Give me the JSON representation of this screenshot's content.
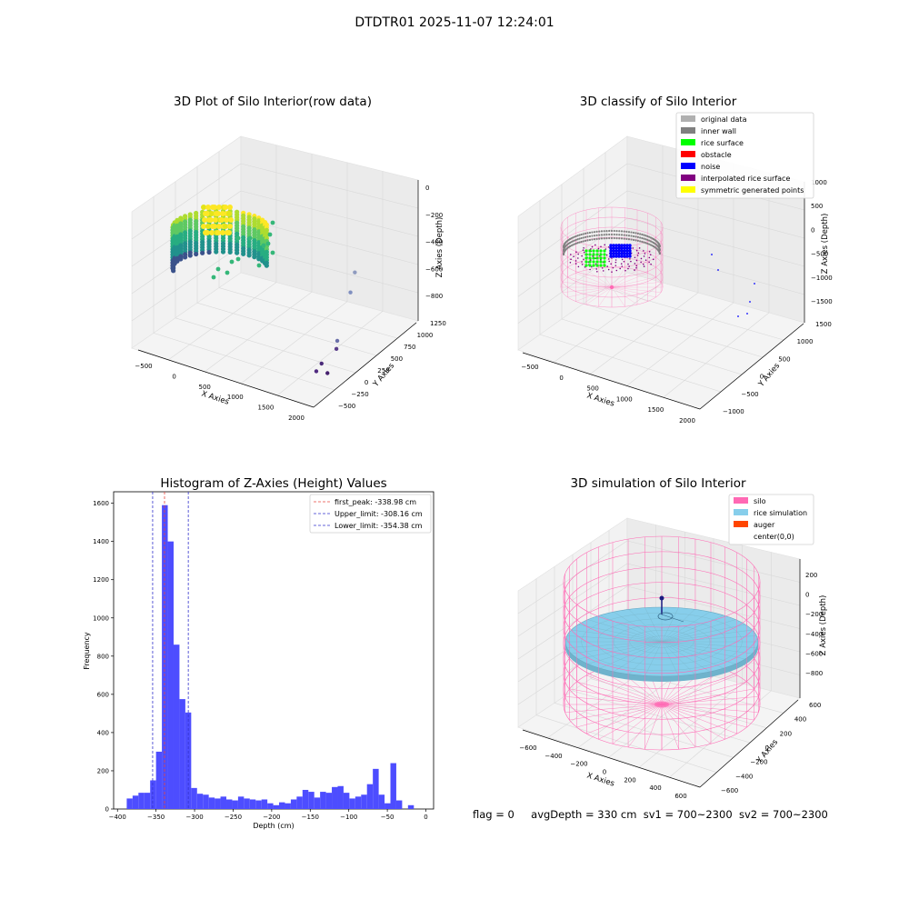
{
  "figure": {
    "title": "DTDTR01 2025-11-07 12:24:01",
    "status": {
      "flag": "flag = 0",
      "avg_depth": "avgDepth = 330 cm",
      "sv1": "sv1 = 700~2300",
      "sv2": "sv2 = 700~2300"
    }
  },
  "colors": {
    "bar": "#4d4dff",
    "peak": "#e8453c",
    "limit": "#3333cc",
    "silo": "#ff69b4",
    "rice": "#87ceeb",
    "auger": "#ff4500",
    "inner_wall": "#808080",
    "rice_surface": "#00ff00",
    "obstacle": "#ff0000",
    "noise": "#0000ff",
    "interpolated": "#800080",
    "symmetric": "#ffff00",
    "original": "#b0b0b0"
  },
  "chart_data": [
    {
      "type": "scatter",
      "projection": "3d",
      "title": "3D Plot of Silo Interior(row data)",
      "xlabel": "X Axies",
      "ylabel": "Y Axies",
      "zlabel": "Z Axies (Depth)",
      "x_ticks": [
        "−500",
        "0",
        "500",
        "1000",
        "1500",
        "2000"
      ],
      "y_ticks": [
        "−500",
        "−250",
        "0",
        "250",
        "500",
        "750",
        "1000",
        "1250"
      ],
      "z_ticks": [
        "−800",
        "−600",
        "−400",
        "−200",
        "0"
      ],
      "xlim": [
        -600,
        2000
      ],
      "ylim": [
        -600,
        1300
      ],
      "zlim": [
        -900,
        0
      ],
      "colormap": "viridis",
      "outlier_points": [
        {
          "x": 1250,
          "y": 1000,
          "z": -550
        },
        {
          "x": 1270,
          "y": 900,
          "z": -650
        },
        {
          "x": 1500,
          "y": 400,
          "z": -800
        },
        {
          "x": 1700,
          "y": 150,
          "z": -760
        },
        {
          "x": 1650,
          "y": -50,
          "z": -810
        },
        {
          "x": 1780,
          "y": -100,
          "z": -840
        },
        {
          "x": 1640,
          "y": -130,
          "z": -840
        }
      ]
    },
    {
      "type": "scatter",
      "projection": "3d",
      "title": "3D classify of Silo Interior",
      "xlabel": "X Axies",
      "ylabel": "Y Axies",
      "zlabel": "Z Axies (Depth)",
      "x_ticks": [
        "−500",
        "0",
        "500",
        "1000",
        "1500",
        "2000"
      ],
      "y_ticks": [
        "−1000",
        "−500",
        "0",
        "500",
        "1000",
        "1500"
      ],
      "z_ticks": [
        "−1500",
        "−1000",
        "−500",
        "0",
        "500",
        "1000"
      ],
      "legend_position": "top-right",
      "legend": [
        {
          "label": "original data",
          "color": "#b0b0b0"
        },
        {
          "label": "inner wall",
          "color": "#808080"
        },
        {
          "label": "rice surface",
          "color": "#00ff00"
        },
        {
          "label": "obstacle",
          "color": "#ff0000"
        },
        {
          "label": "noise",
          "color": "#0000ff"
        },
        {
          "label": "interpolated rice surface",
          "color": "#800080"
        },
        {
          "label": "symmetric generated points",
          "color": "#ffff00"
        }
      ]
    },
    {
      "type": "bar",
      "title": "Histogram of Z-Axies (Height) Values",
      "xlabel": "Depth (cm)",
      "ylabel": "Frequency",
      "xlim": [
        -405,
        10
      ],
      "ylim": [
        0,
        1660
      ],
      "x_ticks": [
        -400,
        -350,
        -300,
        -250,
        -200,
        -150,
        -100,
        -50,
        0
      ],
      "y_ticks": [
        0,
        200,
        400,
        600,
        800,
        1000,
        1200,
        1400,
        1600
      ],
      "bin_width": 7.6,
      "bin_start": -388,
      "values": [
        55,
        70,
        85,
        85,
        150,
        300,
        1590,
        1400,
        860,
        575,
        505,
        110,
        80,
        75,
        60,
        55,
        65,
        50,
        45,
        65,
        55,
        50,
        45,
        50,
        30,
        20,
        35,
        30,
        50,
        65,
        100,
        90,
        60,
        90,
        85,
        115,
        120,
        85,
        55,
        65,
        75,
        130,
        210,
        75,
        30,
        240,
        45,
        0,
        20
      ],
      "lines": [
        {
          "label": "first_peak: -338.98 cm",
          "x": -338.98,
          "color": "#e8453c"
        },
        {
          "label": "Upper_limit: -308.16 cm",
          "x": -308.16,
          "color": "#3333cc"
        },
        {
          "label": "Lower_limit: -354.38 cm",
          "x": -354.38,
          "color": "#3333cc"
        }
      ],
      "legend_position": "top-right",
      "grid": false
    },
    {
      "type": "scatter",
      "projection": "3d",
      "title": "3D simulation of Silo Interior",
      "xlabel": "X Axies",
      "ylabel": "Y Axies",
      "zlabel": "Z Axies (Depth)",
      "x_ticks": [
        "−600",
        "−400",
        "−200",
        "0",
        "200",
        "400",
        "600"
      ],
      "y_ticks": [
        "−600",
        "−400",
        "−200",
        "0",
        "200",
        "400",
        "600"
      ],
      "z_ticks": [
        "−800",
        "−600",
        "−400",
        "−200",
        "0",
        "200"
      ],
      "legend_position": "top-right",
      "legend": [
        {
          "label": "silo",
          "color": "#ff69b4"
        },
        {
          "label": "rice simulation",
          "color": "#87ceeb"
        },
        {
          "label": "auger",
          "color": "#ff4500"
        },
        {
          "label": "center(0,0)",
          "color": "#ffffff"
        }
      ]
    }
  ]
}
